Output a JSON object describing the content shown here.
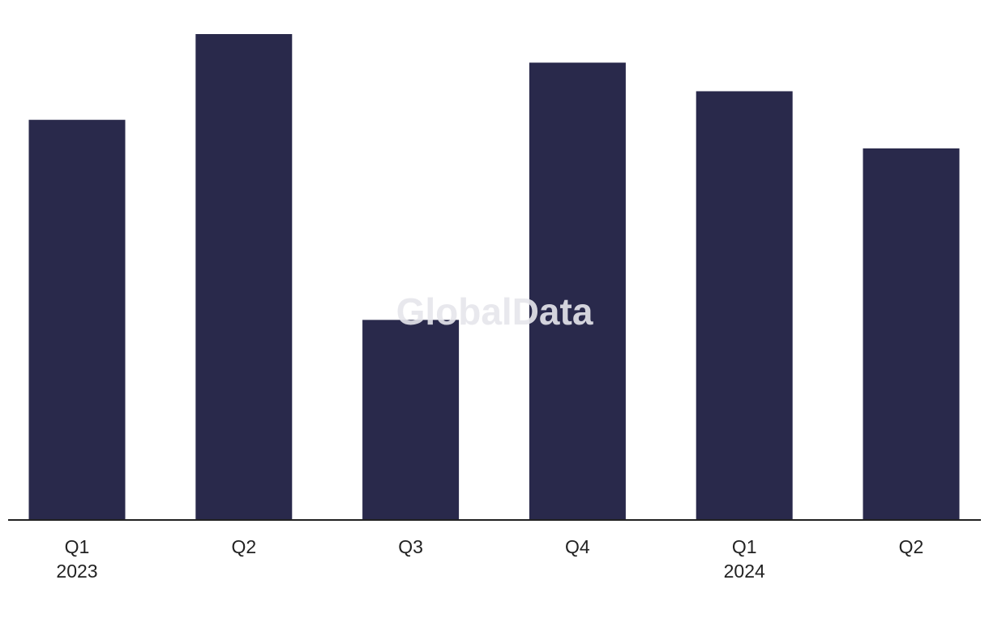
{
  "chart_data": {
    "type": "bar",
    "watermark": "GlobalData",
    "categories": [
      "Q1 2023",
      "Q2",
      "Q3",
      "Q4",
      "Q1 2024",
      "Q2"
    ],
    "values": [
      14,
      17,
      7,
      16,
      15,
      13
    ],
    "color": "#29294b",
    "ylim": [
      0,
      17
    ]
  }
}
